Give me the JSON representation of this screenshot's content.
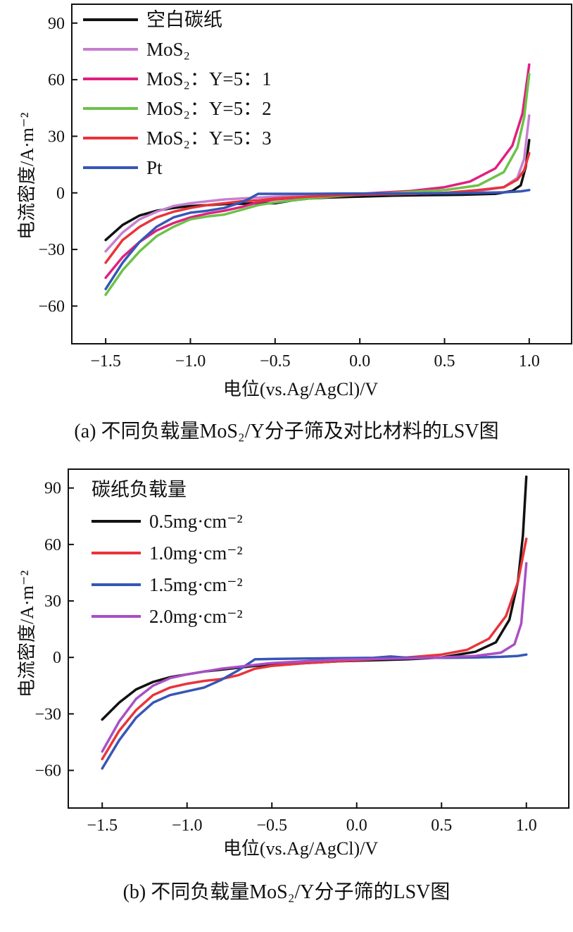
{
  "chart_data": [
    {
      "type": "line",
      "caption": "(a) 不同负载量MoS₂/Y分子筛及对比材料的LSV图",
      "xlabel": "电位(vs.Ag/AgCl)/V",
      "ylabel": "电流密度/A·m⁻²",
      "xlim": [
        -1.7,
        1.25
      ],
      "ylim": [
        -80,
        100
      ],
      "xticks": [
        -1.5,
        -1.0,
        -0.5,
        0.0,
        0.5,
        1.0
      ],
      "xtick_labels": [
        "−1.5",
        "−1.0",
        "−0.5",
        "0.0",
        "0.5",
        "1.0"
      ],
      "yticks": [
        90,
        60,
        30,
        0,
        -30,
        -60
      ],
      "ytick_labels": [
        "90",
        "60",
        "30",
        "0",
        "−30",
        "−60"
      ],
      "legend_title": "",
      "legend_position": "top-left",
      "grid": false,
      "series": [
        {
          "name": "空白碳纸",
          "color": "#111111",
          "points": [
            [
              -1.5,
              -25
            ],
            [
              -1.4,
              -17
            ],
            [
              -1.3,
              -12
            ],
            [
              -1.2,
              -9.5
            ],
            [
              -1.1,
              -8
            ],
            [
              -1.0,
              -7
            ],
            [
              -0.9,
              -6.5
            ],
            [
              -0.8,
              -6
            ],
            [
              -0.7,
              -5.8
            ],
            [
              -0.6,
              -5.5
            ],
            [
              -0.5,
              -5.5
            ],
            [
              -0.4,
              -4
            ],
            [
              -0.3,
              -3
            ],
            [
              -0.2,
              -2.5
            ],
            [
              0.0,
              -2
            ],
            [
              0.2,
              -1.5
            ],
            [
              0.4,
              -1.2
            ],
            [
              0.6,
              -1
            ],
            [
              0.8,
              -0.5
            ],
            [
              0.9,
              1
            ],
            [
              0.95,
              4
            ],
            [
              0.98,
              14
            ],
            [
              1.0,
              28
            ]
          ]
        },
        {
          "name": "MoS₂",
          "color": "#c77fcf",
          "points": [
            [
              -1.5,
              -31
            ],
            [
              -1.4,
              -21
            ],
            [
              -1.3,
              -14
            ],
            [
              -1.2,
              -10
            ],
            [
              -1.1,
              -7
            ],
            [
              -1.0,
              -5.5
            ],
            [
              -0.9,
              -4.5
            ],
            [
              -0.8,
              -3.5
            ],
            [
              -0.7,
              -3
            ],
            [
              -0.6,
              -2.5
            ],
            [
              -0.5,
              -2
            ],
            [
              -0.3,
              -1.5
            ],
            [
              -0.1,
              -1
            ],
            [
              0.1,
              -0.8
            ],
            [
              0.3,
              -0.5
            ],
            [
              0.5,
              0
            ],
            [
              0.7,
              1
            ],
            [
              0.85,
              3
            ],
            [
              0.93,
              8
            ],
            [
              0.97,
              18
            ],
            [
              1.0,
              41
            ]
          ]
        },
        {
          "name": "MoS₂：Y=5：1",
          "color": "#e0207f",
          "points": [
            [
              -1.5,
              -45
            ],
            [
              -1.4,
              -34
            ],
            [
              -1.3,
              -26
            ],
            [
              -1.2,
              -20
            ],
            [
              -1.1,
              -16
            ],
            [
              -1.0,
              -13
            ],
            [
              -0.9,
              -11
            ],
            [
              -0.8,
              -9.5
            ],
            [
              -0.7,
              -7.5
            ],
            [
              -0.6,
              -5
            ],
            [
              -0.5,
              -3.5
            ],
            [
              -0.3,
              -2
            ],
            [
              -0.1,
              -1
            ],
            [
              0.1,
              0
            ],
            [
              0.3,
              1
            ],
            [
              0.5,
              3
            ],
            [
              0.65,
              6
            ],
            [
              0.8,
              13
            ],
            [
              0.9,
              25
            ],
            [
              0.96,
              42
            ],
            [
              1.0,
              68
            ]
          ]
        },
        {
          "name": "MoS₂：Y=5：2",
          "color": "#6cc24a",
          "points": [
            [
              -1.5,
              -54
            ],
            [
              -1.4,
              -41
            ],
            [
              -1.3,
              -31
            ],
            [
              -1.2,
              -23
            ],
            [
              -1.1,
              -18
            ],
            [
              -1.0,
              -14
            ],
            [
              -0.9,
              -12.5
            ],
            [
              -0.8,
              -11.5
            ],
            [
              -0.7,
              -9
            ],
            [
              -0.6,
              -6.5
            ],
            [
              -0.5,
              -5
            ],
            [
              -0.3,
              -3
            ],
            [
              -0.1,
              -1.5
            ],
            [
              0.1,
              -0.5
            ],
            [
              0.3,
              0.5
            ],
            [
              0.5,
              1.5
            ],
            [
              0.7,
              4
            ],
            [
              0.85,
              11
            ],
            [
              0.93,
              24
            ],
            [
              0.97,
              40
            ],
            [
              1.0,
              63
            ]
          ]
        },
        {
          "name": "MoS₂：Y=5：3",
          "color": "#e8343a",
          "points": [
            [
              -1.5,
              -37
            ],
            [
              -1.4,
              -25
            ],
            [
              -1.3,
              -18
            ],
            [
              -1.2,
              -13
            ],
            [
              -1.1,
              -10
            ],
            [
              -1.0,
              -8
            ],
            [
              -0.9,
              -6.5
            ],
            [
              -0.8,
              -5.5
            ],
            [
              -0.7,
              -4.5
            ],
            [
              -0.6,
              -4
            ],
            [
              -0.5,
              -3
            ],
            [
              -0.3,
              -2
            ],
            [
              -0.1,
              -1.2
            ],
            [
              0.1,
              -0.8
            ],
            [
              0.3,
              -0.5
            ],
            [
              0.5,
              0
            ],
            [
              0.7,
              1.5
            ],
            [
              0.85,
              3
            ],
            [
              0.93,
              7
            ],
            [
              0.97,
              12
            ],
            [
              1.0,
              21
            ]
          ]
        },
        {
          "name": "Pt",
          "color": "#3756b5",
          "points": [
            [
              -1.5,
              -51
            ],
            [
              -1.4,
              -37
            ],
            [
              -1.3,
              -26
            ],
            [
              -1.2,
              -18
            ],
            [
              -1.1,
              -13
            ],
            [
              -1.0,
              -10.5
            ],
            [
              -0.9,
              -9.5
            ],
            [
              -0.8,
              -8
            ],
            [
              -0.7,
              -5
            ],
            [
              -0.65,
              -3
            ],
            [
              -0.6,
              -0.5
            ],
            [
              -0.5,
              -0.5
            ],
            [
              -0.3,
              -0.5
            ],
            [
              -0.1,
              -0.4
            ],
            [
              0.1,
              -0.3
            ],
            [
              0.3,
              -0.3
            ],
            [
              0.5,
              -0.2
            ],
            [
              0.7,
              0
            ],
            [
              0.85,
              0.3
            ],
            [
              0.95,
              0.8
            ],
            [
              1.0,
              1.5
            ]
          ]
        }
      ]
    },
    {
      "type": "line",
      "caption": "(b) 不同负载量MoS₂/Y分子筛的LSV图",
      "xlabel": "电位(vs.Ag/AgCl)/V",
      "ylabel": "电流密度/A·m⁻²",
      "xlim": [
        -1.7,
        1.25
      ],
      "ylim": [
        -80,
        100
      ],
      "xticks": [
        -1.5,
        -1.0,
        -0.5,
        0.0,
        0.5,
        1.0
      ],
      "xtick_labels": [
        "−1.5",
        "−1.0",
        "−0.5",
        "0.0",
        "0.5",
        "1.0"
      ],
      "yticks": [
        90,
        60,
        30,
        0,
        -30,
        -60
      ],
      "ytick_labels": [
        "90",
        "60",
        "30",
        "0",
        "−30",
        "−60"
      ],
      "legend_title": "碳纸负载量",
      "legend_position": "top-left",
      "grid": false,
      "series": [
        {
          "name": "0.5mg·cm⁻²",
          "color": "#111111",
          "points": [
            [
              -1.5,
              -33
            ],
            [
              -1.4,
              -24
            ],
            [
              -1.3,
              -17
            ],
            [
              -1.2,
              -13
            ],
            [
              -1.1,
              -10.5
            ],
            [
              -1.0,
              -9
            ],
            [
              -0.9,
              -7.5
            ],
            [
              -0.8,
              -6.5
            ],
            [
              -0.7,
              -5.5
            ],
            [
              -0.6,
              -4.5
            ],
            [
              -0.5,
              -4
            ],
            [
              -0.3,
              -3
            ],
            [
              -0.1,
              -2
            ],
            [
              0.1,
              -1.5
            ],
            [
              0.3,
              -1
            ],
            [
              0.5,
              0
            ],
            [
              0.7,
              3
            ],
            [
              0.82,
              8
            ],
            [
              0.9,
              20
            ],
            [
              0.95,
              40
            ],
            [
              0.98,
              65
            ],
            [
              1.0,
              96
            ]
          ]
        },
        {
          "name": "1.0mg·cm⁻²",
          "color": "#e8343a",
          "points": [
            [
              -1.5,
              -54
            ],
            [
              -1.4,
              -39
            ],
            [
              -1.3,
              -28
            ],
            [
              -1.2,
              -20
            ],
            [
              -1.1,
              -16
            ],
            [
              -1.0,
              -14
            ],
            [
              -0.9,
              -12.5
            ],
            [
              -0.8,
              -11.5
            ],
            [
              -0.7,
              -9.5
            ],
            [
              -0.6,
              -6
            ],
            [
              -0.5,
              -4.5
            ],
            [
              -0.3,
              -3
            ],
            [
              -0.1,
              -2
            ],
            [
              0.1,
              -1
            ],
            [
              0.3,
              0
            ],
            [
              0.5,
              1.5
            ],
            [
              0.65,
              4
            ],
            [
              0.78,
              10
            ],
            [
              0.88,
              22
            ],
            [
              0.95,
              40
            ],
            [
              1.0,
              63
            ]
          ]
        },
        {
          "name": "1.5mg·cm⁻²",
          "color": "#3756b5",
          "points": [
            [
              -1.5,
              -59
            ],
            [
              -1.4,
              -44
            ],
            [
              -1.3,
              -32
            ],
            [
              -1.2,
              -24
            ],
            [
              -1.1,
              -20
            ],
            [
              -1.0,
              -18
            ],
            [
              -0.9,
              -16
            ],
            [
              -0.8,
              -12
            ],
            [
              -0.7,
              -7
            ],
            [
              -0.65,
              -4
            ],
            [
              -0.6,
              -1
            ],
            [
              -0.5,
              -0.8
            ],
            [
              -0.3,
              -0.6
            ],
            [
              -0.1,
              -0.4
            ],
            [
              0.1,
              -0.2
            ],
            [
              0.2,
              0.5
            ],
            [
              0.3,
              -0.2
            ],
            [
              0.5,
              -0.2
            ],
            [
              0.7,
              0
            ],
            [
              0.85,
              0.3
            ],
            [
              0.95,
              0.8
            ],
            [
              1.0,
              1.5
            ]
          ]
        },
        {
          "name": "2.0mg·cm⁻²",
          "color": "#a94fc4",
          "points": [
            [
              -1.5,
              -50
            ],
            [
              -1.4,
              -34
            ],
            [
              -1.3,
              -22
            ],
            [
              -1.2,
              -15
            ],
            [
              -1.1,
              -11
            ],
            [
              -1.0,
              -9
            ],
            [
              -0.9,
              -7.5
            ],
            [
              -0.8,
              -6
            ],
            [
              -0.7,
              -5
            ],
            [
              -0.6,
              -4
            ],
            [
              -0.5,
              -3
            ],
            [
              -0.3,
              -2
            ],
            [
              -0.1,
              -1.2
            ],
            [
              0.1,
              -0.8
            ],
            [
              0.3,
              -0.5
            ],
            [
              0.5,
              0
            ],
            [
              0.7,
              0.8
            ],
            [
              0.85,
              2.5
            ],
            [
              0.93,
              7
            ],
            [
              0.97,
              18
            ],
            [
              1.0,
              50
            ]
          ]
        }
      ]
    }
  ]
}
